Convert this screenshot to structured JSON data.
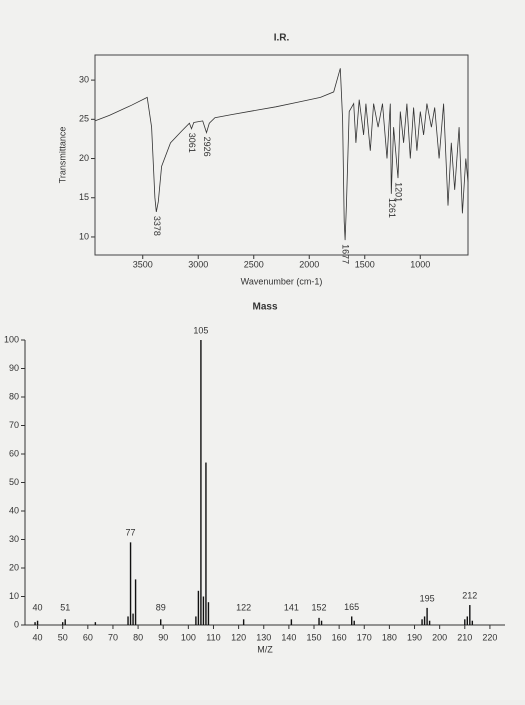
{
  "chart_data": [
    {
      "type": "line",
      "title": "I.R.",
      "x_label": "Wavenumber (cm-1)",
      "y_label": "Transmittance",
      "xlim": [
        3930,
        570
      ],
      "ylim": [
        7.7,
        33.2
      ],
      "xticks": [
        3500,
        3000,
        2500,
        2000,
        1500,
        1000
      ],
      "yticks": [
        10,
        15,
        20,
        25,
        30
      ],
      "color": "#333333",
      "x": [
        3930,
        3800,
        3600,
        3460,
        3420,
        3390,
        3378,
        3360,
        3330,
        3250,
        3150,
        3080,
        3061,
        3040,
        2960,
        2926,
        2900,
        2850,
        2700,
        2500,
        2300,
        2100,
        1900,
        1780,
        1720,
        1700,
        1685,
        1677,
        1665,
        1640,
        1600,
        1580,
        1550,
        1510,
        1490,
        1450,
        1420,
        1380,
        1340,
        1300,
        1270,
        1261,
        1240,
        1201,
        1180,
        1150,
        1120,
        1090,
        1060,
        1030,
        1000,
        970,
        940,
        900,
        870,
        830,
        790,
        750,
        720,
        690,
        650,
        620,
        590,
        570
      ],
      "values": [
        24.8,
        25.5,
        26.8,
        27.8,
        24,
        15,
        13.2,
        14.5,
        19,
        22,
        23.5,
        24.5,
        23.8,
        24.6,
        24.8,
        23.3,
        24.5,
        25.2,
        25.6,
        26.1,
        26.6,
        27.2,
        27.8,
        28.5,
        31.5,
        25,
        12,
        9.6,
        14,
        26,
        27,
        22,
        27.5,
        23,
        27,
        21,
        27,
        24,
        27,
        20,
        27,
        15.5,
        24,
        17.5,
        26,
        22,
        27,
        20,
        26.5,
        21,
        26,
        23,
        27,
        24,
        26.5,
        20,
        27,
        14,
        22,
        16,
        24,
        13,
        20,
        17
      ],
      "peak_labels": [
        3378,
        3061,
        2926,
        1677,
        1261,
        1201
      ]
    },
    {
      "type": "bar",
      "title": "Mass",
      "x_label": "M/Z",
      "xlim": [
        35,
        226
      ],
      "ylim": [
        0,
        100
      ],
      "xticks": [
        40,
        50,
        60,
        70,
        80,
        90,
        100,
        110,
        120,
        130,
        140,
        150,
        160,
        170,
        180,
        190,
        200,
        210,
        220
      ],
      "yticks": [
        0,
        10,
        20,
        30,
        40,
        50,
        60,
        70,
        80,
        90,
        100
      ],
      "color": "#111111",
      "x": [
        39,
        40,
        50,
        51,
        63,
        76,
        77,
        78,
        79,
        89,
        103,
        104,
        105,
        106,
        107,
        108,
        122,
        141,
        152,
        153,
        165,
        166,
        193,
        194,
        195,
        196,
        210,
        211,
        212,
        213
      ],
      "values": [
        1,
        1.5,
        1,
        2,
        1,
        3,
        29,
        4,
        16,
        2,
        3,
        12,
        100,
        10,
        57,
        8,
        2,
        2,
        2.5,
        1.5,
        3,
        1.5,
        2,
        3,
        6,
        1.5,
        2,
        3,
        7,
        1.5
      ],
      "peak_labels": [
        40,
        51,
        77,
        89,
        105,
        122,
        141,
        152,
        165,
        195,
        212
      ]
    }
  ]
}
